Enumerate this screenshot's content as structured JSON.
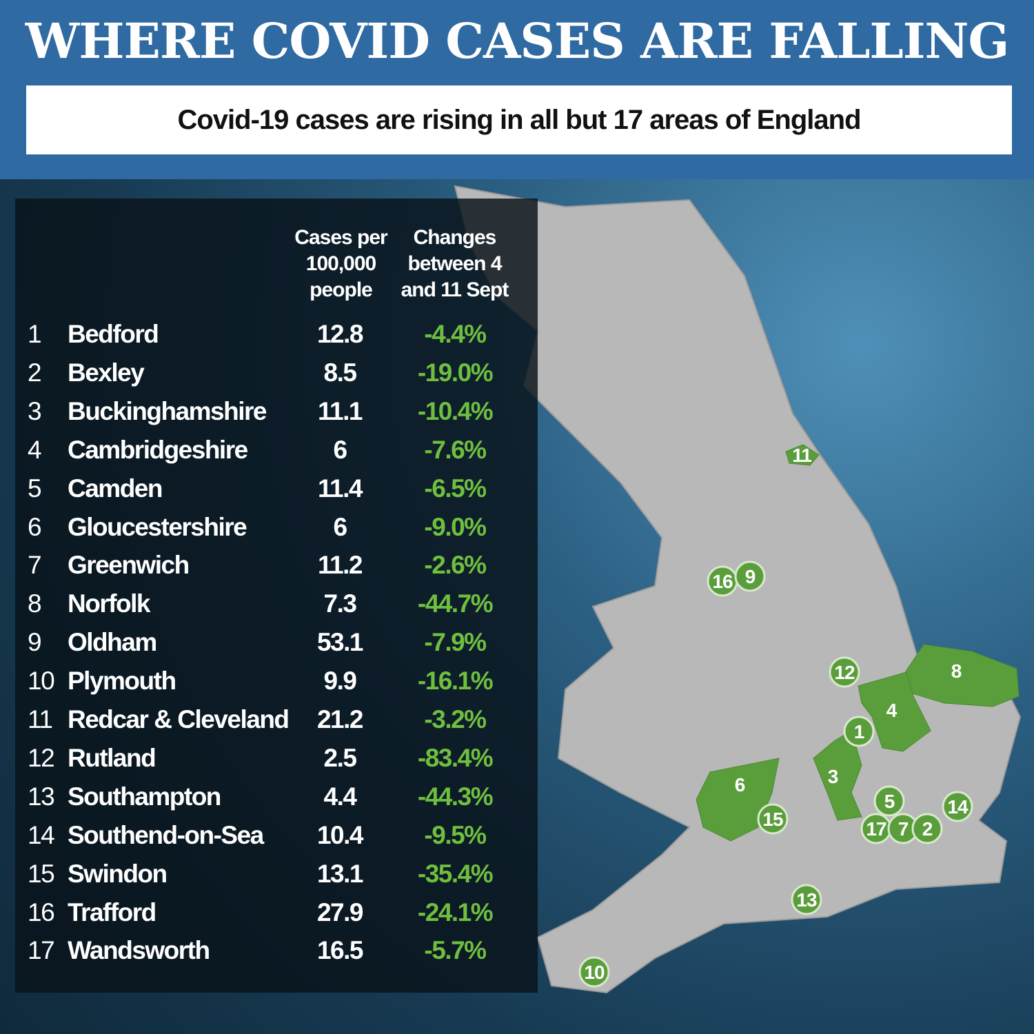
{
  "header": {
    "title": "WHERE COVID CASES ARE FALLING",
    "subtitle": "Covid-19 cases are rising in all but 17 areas of England"
  },
  "table": {
    "headers": [
      "Cases per 100,000 people",
      "Changes between 4 and 11 Sept"
    ],
    "rows": [
      [
        1,
        "Bedford",
        12.8,
        "-4.4%"
      ],
      [
        2,
        "Bexley",
        8.5,
        "-19.0%"
      ],
      [
        3,
        "Buckinghamshire",
        11.1,
        "-10.4%"
      ],
      [
        4,
        "Cambridgeshire",
        6,
        "-7.6%"
      ],
      [
        5,
        "Camden",
        11.4,
        "-6.5%"
      ],
      [
        6,
        "Gloucestershire",
        6,
        "-9.0%"
      ],
      [
        7,
        "Greenwich",
        11.2,
        "-2.6%"
      ],
      [
        8,
        "Norfolk",
        7.3,
        "-44.7%"
      ],
      [
        9,
        "Oldham",
        53.1,
        "-7.9%"
      ],
      [
        10,
        "Plymouth",
        9.9,
        "-16.1%"
      ],
      [
        11,
        "Redcar & Cleveland",
        21.2,
        "-3.2%"
      ],
      [
        12,
        "Rutland",
        2.5,
        "-83.4%"
      ],
      [
        13,
        "Southampton",
        4.4,
        "-44.3%"
      ],
      [
        14,
        "Southend-on-Sea",
        10.4,
        "-9.5%"
      ],
      [
        15,
        "Swindon",
        13.1,
        "-35.4%"
      ],
      [
        16,
        "Trafford",
        27.9,
        "-24.1%"
      ],
      [
        17,
        "Wandsworth",
        16.5,
        "-5.7%"
      ]
    ]
  },
  "map": {
    "markers": [
      11,
      16,
      9,
      12,
      8,
      4,
      1,
      3,
      6,
      15,
      5,
      14,
      17,
      7,
      2,
      13,
      10
    ]
  }
}
